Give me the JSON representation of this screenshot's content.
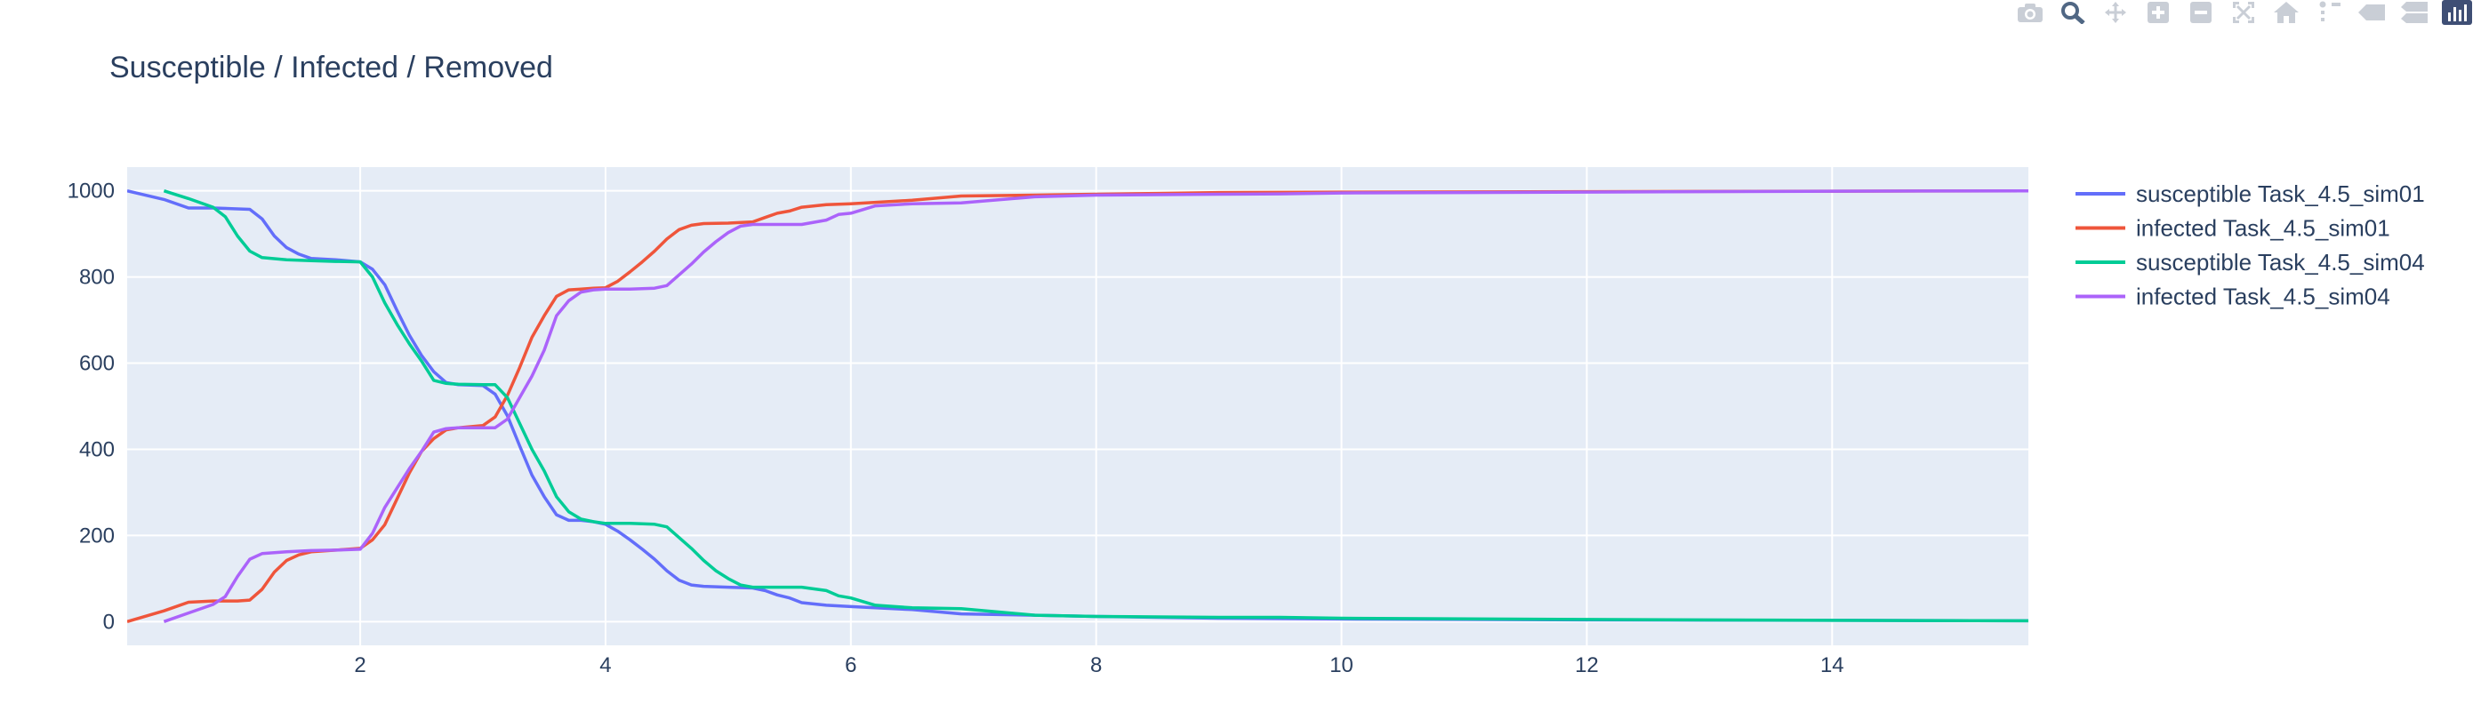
{
  "toolbar": {
    "buttons": [
      {
        "name": "camera-icon",
        "title": "Download plot as a png"
      },
      {
        "name": "zoom-icon",
        "title": "Zoom"
      },
      {
        "name": "pan-icon",
        "title": "Pan"
      },
      {
        "name": "zoom-in-icon",
        "title": "Zoom in"
      },
      {
        "name": "zoom-out-icon",
        "title": "Zoom out"
      },
      {
        "name": "autoscale-icon",
        "title": "Autoscale"
      },
      {
        "name": "reset-axes-icon",
        "title": "Reset axes"
      },
      {
        "name": "spike-lines-icon",
        "title": "Toggle Spike Lines"
      },
      {
        "name": "hover-closest-icon",
        "title": "Show closest data on hover"
      },
      {
        "name": "hover-compare-icon",
        "title": "Compare data on hover"
      },
      {
        "name": "plotly-logo-icon",
        "title": "Produced with Plotly"
      }
    ]
  },
  "colors": {
    "plot_bg": "#e5ecf6",
    "grid": "#ffffff",
    "text": "#2a3f5f",
    "modebar_icon": "#c9ced6",
    "modebar_active": "#506784",
    "logo_bg": "#3f4f75"
  },
  "chart_data": {
    "type": "line",
    "title": "Susceptible / Infected / Removed",
    "xlabel": "",
    "ylabel": "",
    "xlim": [
      0.1,
      15.6
    ],
    "ylim": [
      -55,
      1055
    ],
    "xticks": [
      2,
      4,
      6,
      8,
      10,
      12,
      14
    ],
    "yticks": [
      0,
      200,
      400,
      600,
      800,
      1000
    ],
    "grid": true,
    "legend_position": "right",
    "series": [
      {
        "name": "susceptible Task_4.5_sim01",
        "color": "#636efa",
        "x": [
          0.1,
          0.4,
          0.6,
          0.8,
          1.0,
          1.1,
          1.2,
          1.3,
          1.4,
          1.5,
          1.6,
          1.8,
          2.0,
          2.1,
          2.2,
          2.3,
          2.4,
          2.5,
          2.6,
          2.7,
          2.8,
          3.0,
          3.1,
          3.2,
          3.3,
          3.4,
          3.5,
          3.6,
          3.7,
          3.8,
          3.9,
          4.0,
          4.1,
          4.2,
          4.3,
          4.4,
          4.5,
          4.6,
          4.7,
          4.8,
          5.0,
          5.2,
          5.3,
          5.4,
          5.5,
          5.6,
          5.8,
          6.0,
          6.5,
          6.9,
          7.5,
          8.0,
          8.5,
          9.0,
          10.0,
          12.0,
          14.0,
          15.6
        ],
        "y": [
          1000,
          980,
          960,
          960,
          958,
          957,
          935,
          895,
          868,
          853,
          843,
          840,
          835,
          818,
          782,
          722,
          665,
          618,
          580,
          555,
          550,
          548,
          528,
          478,
          408,
          340,
          290,
          248,
          235,
          235,
          232,
          226,
          210,
          190,
          168,
          145,
          118,
          96,
          85,
          82,
          80,
          78,
          72,
          62,
          55,
          44,
          38,
          35,
          28,
          18,
          15,
          12,
          10,
          8,
          6,
          4,
          3,
          2
        ]
      },
      {
        "name": "infected Task_4.5_sim01",
        "color": "#ef553b",
        "x": [
          0.1,
          0.4,
          0.6,
          0.8,
          1.0,
          1.1,
          1.2,
          1.3,
          1.4,
          1.5,
          1.6,
          1.8,
          2.0,
          2.1,
          2.2,
          2.3,
          2.4,
          2.5,
          2.6,
          2.7,
          2.8,
          3.0,
          3.1,
          3.2,
          3.3,
          3.4,
          3.5,
          3.6,
          3.7,
          3.8,
          3.9,
          4.0,
          4.1,
          4.2,
          4.3,
          4.4,
          4.5,
          4.6,
          4.7,
          4.8,
          5.0,
          5.2,
          5.3,
          5.4,
          5.5,
          5.6,
          5.8,
          6.0,
          6.5,
          6.9,
          7.5,
          8.0,
          8.5,
          9.0,
          10.0,
          12.0,
          14.0,
          15.6
        ],
        "y": [
          0,
          25,
          45,
          48,
          48,
          50,
          75,
          115,
          142,
          155,
          162,
          166,
          170,
          190,
          225,
          285,
          345,
          395,
          425,
          445,
          450,
          455,
          475,
          525,
          590,
          660,
          710,
          755,
          770,
          772,
          774,
          775,
          790,
          812,
          835,
          860,
          888,
          910,
          920,
          924,
          925,
          928,
          938,
          948,
          953,
          962,
          968,
          970,
          978,
          988,
          990,
          992,
          994,
          996,
          997,
          998,
          999,
          1000
        ]
      },
      {
        "name": "susceptible Task_4.5_sim04",
        "color": "#00cc96",
        "x": [
          0.4,
          0.6,
          0.8,
          0.9,
          1.0,
          1.1,
          1.2,
          1.4,
          1.6,
          1.8,
          2.0,
          2.1,
          2.2,
          2.3,
          2.4,
          2.5,
          2.6,
          2.7,
          2.8,
          3.0,
          3.1,
          3.2,
          3.3,
          3.4,
          3.5,
          3.6,
          3.7,
          3.8,
          3.9,
          4.0,
          4.2,
          4.4,
          4.5,
          4.6,
          4.7,
          4.8,
          4.9,
          5.0,
          5.1,
          5.2,
          5.4,
          5.6,
          5.8,
          5.9,
          6.0,
          6.2,
          6.5,
          6.9,
          7.5,
          8.0,
          8.5,
          9.0,
          9.5,
          10.0,
          12.0,
          14.0,
          15.6
        ],
        "y": [
          1000,
          982,
          962,
          940,
          895,
          860,
          845,
          840,
          838,
          836,
          835,
          800,
          740,
          690,
          645,
          605,
          560,
          553,
          551,
          550,
          550,
          520,
          460,
          400,
          350,
          290,
          255,
          238,
          232,
          228,
          228,
          226,
          220,
          195,
          170,
          142,
          118,
          100,
          85,
          80,
          80,
          80,
          72,
          60,
          55,
          38,
          32,
          30,
          15,
          12,
          11,
          10,
          10,
          8,
          5,
          3,
          2
        ]
      },
      {
        "name": "infected Task_4.5_sim04",
        "color": "#ab63fa",
        "x": [
          0.4,
          0.6,
          0.8,
          0.9,
          1.0,
          1.1,
          1.2,
          1.4,
          1.6,
          1.8,
          2.0,
          2.1,
          2.2,
          2.3,
          2.4,
          2.5,
          2.6,
          2.7,
          2.8,
          3.0,
          3.1,
          3.2,
          3.3,
          3.4,
          3.5,
          3.6,
          3.7,
          3.8,
          3.9,
          4.0,
          4.2,
          4.4,
          4.5,
          4.6,
          4.7,
          4.8,
          4.9,
          5.0,
          5.1,
          5.2,
          5.4,
          5.6,
          5.8,
          5.9,
          6.0,
          6.2,
          6.5,
          6.9,
          7.5,
          8.0,
          8.5,
          9.0,
          9.5,
          10.0,
          12.0,
          14.0,
          15.6
        ],
        "y": [
          0,
          20,
          40,
          58,
          105,
          145,
          158,
          162,
          165,
          166,
          168,
          205,
          265,
          310,
          355,
          395,
          440,
          448,
          450,
          450,
          450,
          470,
          520,
          570,
          630,
          710,
          745,
          765,
          770,
          772,
          772,
          774,
          780,
          805,
          830,
          858,
          882,
          903,
          918,
          922,
          922,
          922,
          932,
          945,
          948,
          965,
          970,
          972,
          986,
          990,
          991,
          992,
          993,
          995,
          997,
          999,
          1000
        ]
      }
    ]
  }
}
